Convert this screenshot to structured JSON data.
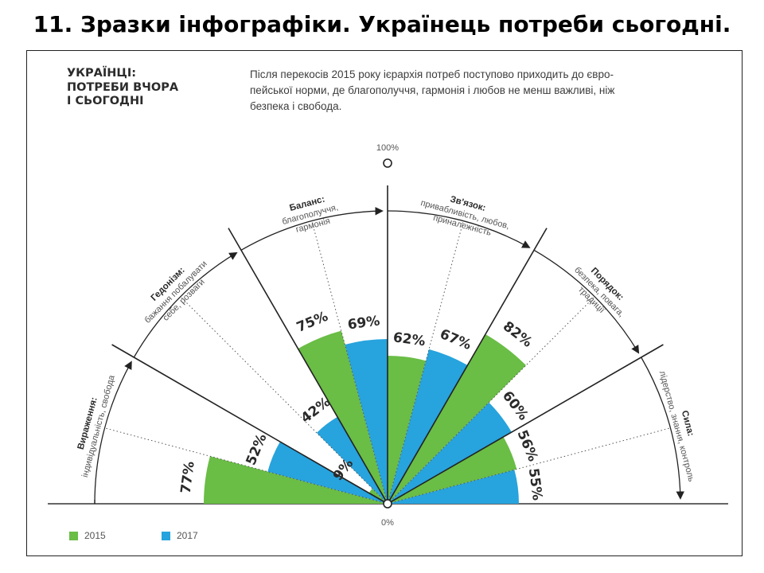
{
  "slide": {
    "title": "11. Зразки інфографіки. Українець потреби сьогодні."
  },
  "chart_data": {
    "type": "polar-bar",
    "title_lines": [
      "УКРАЇНЦІ:",
      "ПОТРЕБИ ВЧОРА",
      "І СЬОГОДНІ"
    ],
    "subtitle_lines": [
      "Після перекосів 2015 року ієрархія потреб поступово приходить до євро-",
      "пейської норми, де благополуччя, гармонія і любов не менш важливі, ніж",
      "безпека і свобода."
    ],
    "axis": {
      "min_label": "0%",
      "max_label": "100%",
      "range": [
        0,
        100
      ]
    },
    "series": [
      {
        "name": "2015",
        "color": "#6abd45"
      },
      {
        "name": "2017",
        "color": "#27a3dd"
      }
    ],
    "categories": [
      {
        "name": "Вираження:",
        "desc": [
          "індивідуальність, свобода"
        ],
        "values": [
          77,
          52
        ]
      },
      {
        "name": "Гедонізм:",
        "desc": [
          "бажання побалувати",
          "себе, розваги"
        ],
        "values": [
          9,
          42
        ]
      },
      {
        "name": "Баланс:",
        "desc": [
          "благополуччя,",
          "гармонія"
        ],
        "values": [
          75,
          69
        ]
      },
      {
        "name": "Зв'язок:",
        "desc": [
          "привабливість, любов,",
          "приналежність"
        ],
        "values": [
          62,
          67
        ]
      },
      {
        "name": "Порядок:",
        "desc": [
          "безпека, повага,",
          "традиції"
        ],
        "values": [
          82,
          60
        ]
      },
      {
        "name": "Сила:",
        "desc": [
          "лідерство, знання, контроль"
        ],
        "values": [
          56,
          55
        ]
      }
    ]
  }
}
